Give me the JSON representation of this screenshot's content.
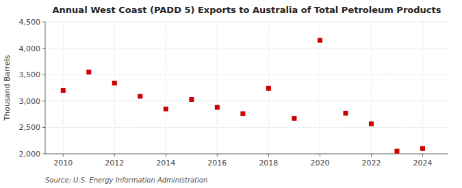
{
  "chart_data": {
    "type": "scatter",
    "title": "Annual West Coast (PADD 5) Exports to Australia of Total Petroleum Products",
    "ylabel": "Thousand Barrels",
    "source": "Source: U.S. Energy Information Administration",
    "x": [
      2010,
      2011,
      2012,
      2013,
      2014,
      2015,
      2016,
      2017,
      2018,
      2019,
      2020,
      2021,
      2022,
      2023,
      2024
    ],
    "values": [
      3200,
      3550,
      3340,
      3090,
      2850,
      3030,
      2880,
      2760,
      3240,
      2670,
      4150,
      2770,
      2570,
      2050,
      2100
    ],
    "color": "#cc0000",
    "marker": "square",
    "xlim": [
      2009.3,
      2025.0
    ],
    "xticks": [
      2010,
      2012,
      2014,
      2016,
      2018,
      2020,
      2022,
      2024
    ],
    "ylim": [
      2000,
      4500
    ],
    "yticks": [
      {
        "value": 2000,
        "label": "2,000"
      },
      {
        "value": 2500,
        "label": "2,500"
      },
      {
        "value": 3000,
        "label": "3,000"
      },
      {
        "value": 3500,
        "label": "3,500"
      },
      {
        "value": 4000,
        "label": "4,000"
      },
      {
        "value": 4500,
        "label": "4,500"
      }
    ],
    "grid": true
  }
}
